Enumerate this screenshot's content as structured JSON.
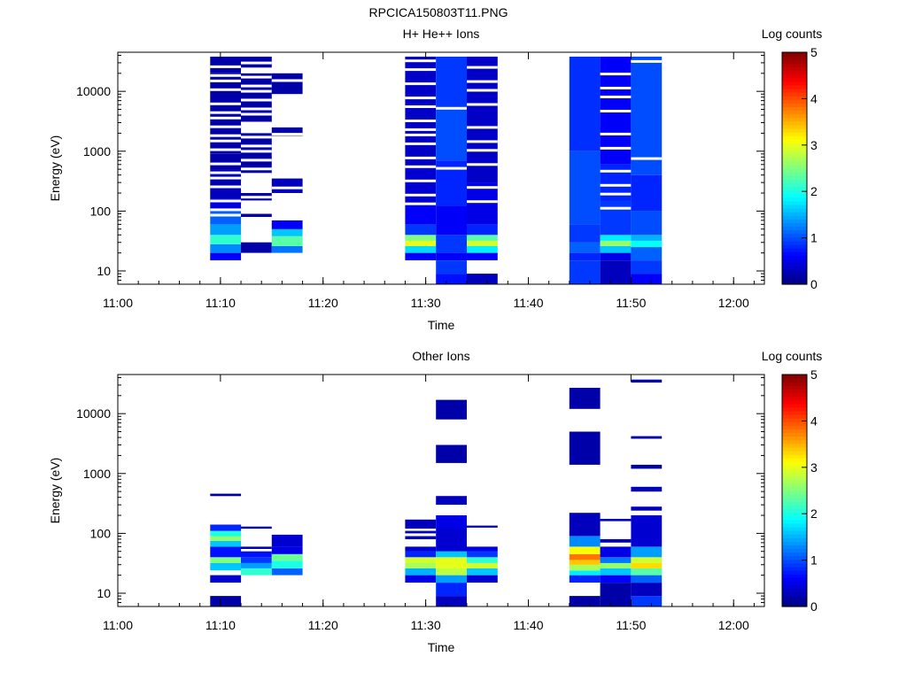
{
  "figure_title": "RPCICA150803T11.PNG",
  "chart_data": [
    {
      "type": "heatmap",
      "title": "H+ He++ Ions",
      "xlabel": "Time",
      "ylabel": "Energy (eV)",
      "yscale": "log",
      "ylim": [
        6,
        45000
      ],
      "xlim": [
        "11:00",
        "12:03"
      ],
      "x_tick_labels": [
        "11:00",
        "11:10",
        "11:20",
        "11:30",
        "11:40",
        "11:50",
        "12:00"
      ],
      "y_tick_labels": [
        "10",
        "100",
        "1000",
        "10000"
      ],
      "colorbar": {
        "label": "Log counts",
        "min": 0,
        "max": 5,
        "tick_labels": [
          "0",
          "1",
          "2",
          "3",
          "4",
          "5"
        ]
      },
      "grid": false,
      "scans": [
        {
          "start": "11:09",
          "end": "11:12",
          "emin": 15,
          "emax": 38000,
          "cells": [
            [
              15,
              20,
              0.6
            ],
            [
              20,
              28,
              1.3
            ],
            [
              28,
              40,
              2.1
            ],
            [
              40,
              60,
              1.4
            ],
            [
              60,
              100,
              1.1
            ],
            [
              100,
              160,
              0.5
            ],
            [
              160,
              260,
              0.3
            ],
            [
              260,
              500,
              0.25
            ],
            [
              500,
              900,
              0.2
            ],
            [
              900,
              2000,
              0.2
            ],
            [
              2000,
              6000,
              0.2
            ],
            [
              6000,
              20000,
              0.2
            ],
            [
              20000,
              38000,
              0.2
            ]
          ],
          "gaps": 18
        },
        {
          "start": "11:12",
          "end": "11:15",
          "emin": 20,
          "emax": 38000,
          "cells": [
            [
              20,
              30,
              0.2
            ],
            [
              80,
              90,
              0.2
            ],
            [
              150,
              200,
              0.2
            ],
            [
              400,
              2000,
              0.2
            ],
            [
              3000,
              20000,
              0.2
            ],
            [
              25000,
              38000,
              0.2
            ]
          ],
          "gaps": 20
        },
        {
          "start": "11:15",
          "end": "11:18",
          "emin": 20,
          "emax": 20000,
          "cells": [
            [
              20,
              26,
              1.2
            ],
            [
              26,
              38,
              2.3
            ],
            [
              38,
              50,
              1.6
            ],
            [
              50,
              70,
              0.6
            ],
            [
              200,
              350,
              0.3
            ],
            [
              1800,
              2500,
              0.2
            ],
            [
              9000,
              20000,
              0.2
            ]
          ],
          "gaps": 6
        },
        {
          "start": "11:28",
          "end": "11:31",
          "emin": 15,
          "emax": 38000,
          "cells": [
            [
              15,
              20,
              0.6
            ],
            [
              20,
              26,
              1.7
            ],
            [
              26,
              32,
              3.0
            ],
            [
              32,
              40,
              2.5
            ],
            [
              40,
              60,
              0.9
            ],
            [
              60,
              120,
              0.6
            ],
            [
              120,
              500,
              0.4
            ],
            [
              500,
              38000,
              0.35
            ]
          ],
          "gaps": 14
        },
        {
          "start": "11:31",
          "end": "11:34",
          "emin": 6,
          "emax": 38000,
          "cells": [
            [
              6,
              9,
              0.7
            ],
            [
              9,
              15,
              0.9
            ],
            [
              15,
              20,
              0.6
            ],
            [
              20,
              40,
              0.9
            ],
            [
              40,
              120,
              0.6
            ],
            [
              120,
              700,
              0.8
            ],
            [
              700,
              5000,
              1.0
            ],
            [
              5000,
              38000,
              0.9
            ]
          ],
          "gaps": 2
        },
        {
          "start": "11:34",
          "end": "11:37",
          "emin": 6,
          "emax": 38000,
          "cells": [
            [
              6,
              9,
              0.3
            ],
            [
              15,
              20,
              0.6
            ],
            [
              20,
              26,
              1.8
            ],
            [
              26,
              32,
              2.9
            ],
            [
              32,
              40,
              2.3
            ],
            [
              40,
              60,
              0.8
            ],
            [
              60,
              300,
              0.5
            ],
            [
              300,
              38000,
              0.35
            ]
          ],
          "gaps": 10
        },
        {
          "start": "11:44",
          "end": "11:47",
          "emin": 6,
          "emax": 38000,
          "cells": [
            [
              6,
              15,
              0.9
            ],
            [
              15,
              20,
              0.8
            ],
            [
              20,
              30,
              1.1
            ],
            [
              30,
              60,
              0.9
            ],
            [
              60,
              1000,
              1.0
            ],
            [
              1000,
              38000,
              0.85
            ]
          ],
          "gaps": 0
        },
        {
          "start": "11:47",
          "end": "11:50",
          "emin": 6,
          "emax": 38000,
          "cells": [
            [
              6,
              15,
              0.3
            ],
            [
              15,
              20,
              0.5
            ],
            [
              20,
              26,
              1.6
            ],
            [
              26,
              32,
              2.6
            ],
            [
              32,
              40,
              1.8
            ],
            [
              40,
              150,
              0.9
            ],
            [
              150,
              600,
              0.8
            ],
            [
              600,
              38000,
              0.6
            ]
          ],
          "gaps": 10
        },
        {
          "start": "11:50",
          "end": "11:53",
          "emin": 6,
          "emax": 38000,
          "cells": [
            [
              6,
              9,
              0.6
            ],
            [
              9,
              15,
              0.9
            ],
            [
              15,
              25,
              1.1
            ],
            [
              25,
              32,
              1.9
            ],
            [
              32,
              40,
              1.5
            ],
            [
              40,
              100,
              1.0
            ],
            [
              100,
              400,
              0.8
            ],
            [
              400,
              38000,
              1.0
            ]
          ],
          "gaps": 2
        }
      ]
    },
    {
      "type": "heatmap",
      "title": "Other Ions",
      "xlabel": "Time",
      "ylabel": "Energy (eV)",
      "yscale": "log",
      "ylim": [
        6,
        45000
      ],
      "xlim": [
        "11:00",
        "12:03"
      ],
      "x_tick_labels": [
        "11:00",
        "11:10",
        "11:20",
        "11:30",
        "11:40",
        "11:50",
        "12:00"
      ],
      "y_tick_labels": [
        "10",
        "100",
        "1000",
        "10000"
      ],
      "colorbar": {
        "label": "Log counts",
        "min": 0,
        "max": 5,
        "tick_labels": [
          "0",
          "1",
          "2",
          "3",
          "4",
          "5"
        ]
      },
      "grid": false,
      "scans": [
        {
          "start": "11:09",
          "end": "11:12",
          "emin": 6,
          "emax": 450,
          "cells": [
            [
              6,
              9,
              0.2
            ],
            [
              15,
              20,
              0.4
            ],
            [
              24,
              32,
              1.6
            ],
            [
              32,
              40,
              2.5
            ],
            [
              40,
              60,
              0.7
            ],
            [
              60,
              75,
              1.6
            ],
            [
              75,
              90,
              2.6
            ],
            [
              90,
              110,
              2.0
            ],
            [
              110,
              140,
              0.8
            ],
            [
              420,
              460,
              0.2
            ]
          ],
          "gaps": 0
        },
        {
          "start": "11:12",
          "end": "11:15",
          "emin": 20,
          "emax": 130,
          "cells": [
            [
              20,
              26,
              2.1
            ],
            [
              26,
              32,
              1.4
            ],
            [
              32,
              40,
              0.9
            ],
            [
              40,
              50,
              0.7
            ],
            [
              55,
              60,
              0.3
            ],
            [
              120,
              130,
              0.3
            ]
          ],
          "gaps": 0
        },
        {
          "start": "11:15",
          "end": "11:18",
          "emin": 20,
          "emax": 95,
          "cells": [
            [
              20,
              26,
              1.1
            ],
            [
              26,
              35,
              2.0
            ],
            [
              35,
              45,
              2.4
            ],
            [
              45,
              60,
              0.5
            ],
            [
              60,
              95,
              0.4
            ]
          ],
          "gaps": 0
        },
        {
          "start": "11:28",
          "end": "11:31",
          "emin": 15,
          "emax": 170,
          "cells": [
            [
              15,
              20,
              0.5
            ],
            [
              20,
              26,
              1.5
            ],
            [
              26,
              32,
              2.7
            ],
            [
              32,
              40,
              2.9
            ],
            [
              40,
              50,
              0.8
            ],
            [
              50,
              60,
              0.4
            ],
            [
              80,
              90,
              0.3
            ],
            [
              100,
              110,
              0.3
            ],
            [
              120,
              170,
              0.3
            ]
          ],
          "gaps": 0
        },
        {
          "start": "11:31",
          "end": "11:34",
          "emin": 6,
          "emax": 17000,
          "cells": [
            [
              6,
              9,
              0.3
            ],
            [
              9,
              15,
              0.8
            ],
            [
              15,
              20,
              1.4
            ],
            [
              20,
              26,
              2.8
            ],
            [
              26,
              40,
              3.0
            ],
            [
              40,
              50,
              1.6
            ],
            [
              50,
              120,
              0.4
            ],
            [
              120,
              200,
              0.5
            ],
            [
              300,
              420,
              0.3
            ],
            [
              1500,
              3000,
              0.2
            ],
            [
              8000,
              17000,
              0.2
            ]
          ],
          "gaps": 0
        },
        {
          "start": "11:34",
          "end": "11:37",
          "emin": 15,
          "emax": 130,
          "cells": [
            [
              15,
              20,
              0.4
            ],
            [
              20,
              26,
              1.6
            ],
            [
              26,
              32,
              2.9
            ],
            [
              32,
              40,
              2.1
            ],
            [
              40,
              50,
              0.9
            ],
            [
              50,
              60,
              0.5
            ],
            [
              125,
              135,
              0.3
            ]
          ],
          "gaps": 0
        },
        {
          "start": "11:44",
          "end": "11:47",
          "emin": 6,
          "emax": 27000,
          "cells": [
            [
              6,
              9,
              0.2
            ],
            [
              15,
              20,
              0.8
            ],
            [
              20,
              24,
              1.8
            ],
            [
              24,
              30,
              2.7
            ],
            [
              30,
              36,
              3.4
            ],
            [
              36,
              45,
              3.8
            ],
            [
              45,
              60,
              3.1
            ],
            [
              60,
              90,
              1.3
            ],
            [
              90,
              220,
              0.3
            ],
            [
              1400,
              5000,
              0.2
            ],
            [
              12000,
              27000,
              0.2
            ]
          ],
          "gaps": 0
        },
        {
          "start": "11:47",
          "end": "11:50",
          "emin": 6,
          "emax": 170,
          "cells": [
            [
              6,
              15,
              0.2
            ],
            [
              15,
              20,
              0.6
            ],
            [
              20,
              26,
              1.6
            ],
            [
              26,
              32,
              2.6
            ],
            [
              32,
              40,
              1.2
            ],
            [
              40,
              60,
              0.5
            ],
            [
              70,
              80,
              0.3
            ],
            [
              160,
              175,
              0.3
            ]
          ],
          "gaps": 0
        },
        {
          "start": "11:50",
          "end": "11:53",
          "emin": 6,
          "emax": 37000,
          "cells": [
            [
              6,
              9,
              0.9
            ],
            [
              9,
              15,
              0.3
            ],
            [
              15,
              20,
              1.1
            ],
            [
              20,
              26,
              2.3
            ],
            [
              26,
              32,
              3.3
            ],
            [
              32,
              40,
              2.9
            ],
            [
              40,
              60,
              1.4
            ],
            [
              60,
              200,
              0.4
            ],
            [
              240,
              280,
              0.3
            ],
            [
              500,
              600,
              0.3
            ],
            [
              1200,
              1400,
              0.2
            ],
            [
              3800,
              4200,
              0.2
            ],
            [
              33000,
              37000,
              0.2
            ]
          ],
          "gaps": 0
        }
      ]
    }
  ]
}
